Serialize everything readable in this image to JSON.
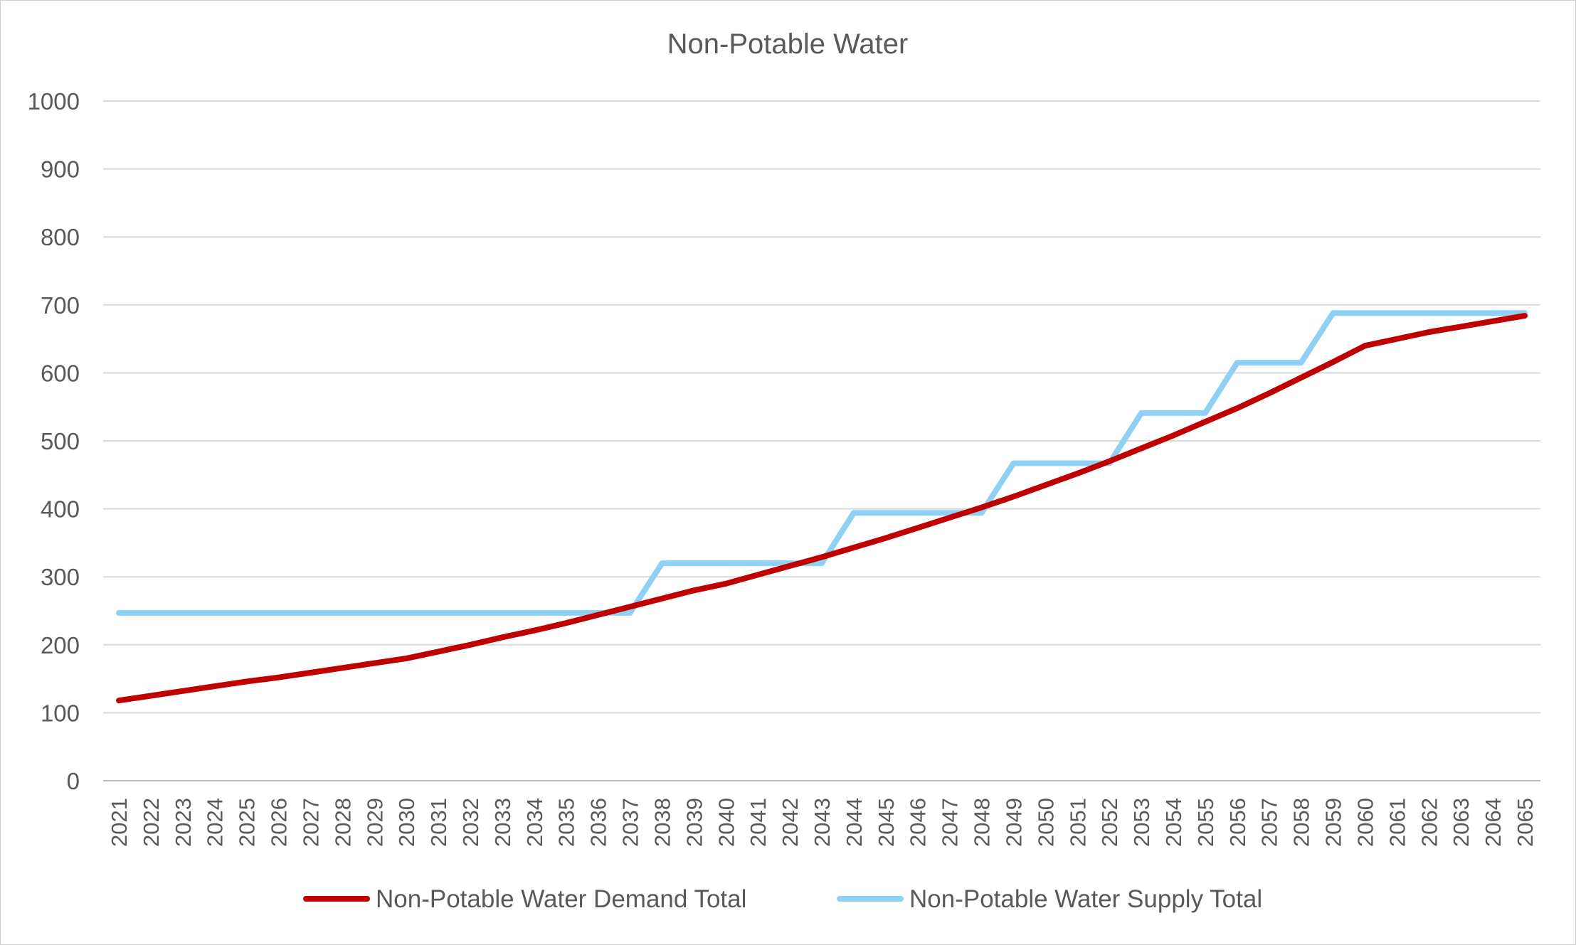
{
  "chart_data": {
    "type": "line",
    "title": "Non-Potable Water",
    "xlabel": "",
    "ylabel": "",
    "ylim": [
      0,
      1000
    ],
    "yticks": [
      "0",
      "100",
      "200",
      "300",
      "400",
      "500",
      "600",
      "700",
      "800",
      "900",
      "1000"
    ],
    "grid": true,
    "legend_position": "bottom",
    "categories": [
      "2021",
      "2022",
      "2023",
      "2024",
      "2025",
      "2026",
      "2027",
      "2028",
      "2029",
      "2030",
      "2031",
      "2032",
      "2033",
      "2034",
      "2035",
      "2036",
      "2037",
      "2038",
      "2039",
      "2040",
      "2041",
      "2042",
      "2043",
      "2044",
      "2045",
      "2046",
      "2047",
      "2048",
      "2049",
      "2050",
      "2051",
      "2052",
      "2053",
      "2054",
      "2055",
      "2056",
      "2057",
      "2058",
      "2059",
      "2060",
      "2061",
      "2062",
      "2063",
      "2064",
      "2065"
    ],
    "series": [
      {
        "name": "Non-Potable Water Demand Total",
        "color": "#c00000",
        "values": [
          118,
          125,
          132,
          139,
          146,
          152,
          159,
          166,
          173,
          180,
          190,
          200,
          211,
          221,
          232,
          244,
          256,
          268,
          280,
          290,
          303,
          316,
          329,
          343,
          357,
          372,
          387,
          402,
          418,
          435,
          452,
          470,
          489,
          508,
          528,
          548,
          570,
          593,
          616,
          640,
          650,
          660,
          668,
          676,
          684
        ]
      },
      {
        "name": "Non-Potable Water Supply Total",
        "color": "#8fd0f5",
        "values": [
          247,
          247,
          247,
          247,
          247,
          247,
          247,
          247,
          247,
          247,
          247,
          247,
          247,
          247,
          247,
          247,
          247,
          320,
          320,
          320,
          320,
          320,
          320,
          394,
          394,
          394,
          394,
          394,
          467,
          467,
          467,
          467,
          541,
          541,
          541,
          615,
          615,
          615,
          688,
          688,
          688,
          688,
          688,
          688,
          688
        ]
      }
    ]
  }
}
